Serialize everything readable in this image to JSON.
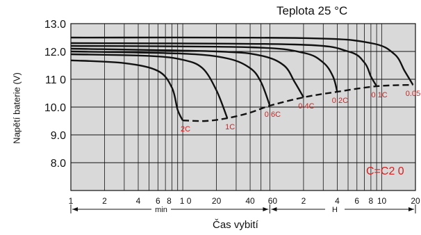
{
  "chart_data": {
    "type": "line",
    "title": "Teplota 25 °C",
    "xlabel": "Čas vybití",
    "ylabel": "Napětí baterie (V)",
    "ylim": [
      7.0,
      13.0
    ],
    "ytick_labels": [
      "13.0",
      "12.0",
      "11 0",
      "10.0",
      "9.0",
      "8.0"
    ],
    "xtick_labels": [
      "1",
      "2",
      "4",
      "6",
      "8",
      "1 0",
      "20",
      "40",
      "60",
      "2",
      "4",
      "6",
      "8",
      "10",
      "20"
    ],
    "unit_labels": {
      "min": "min",
      "hours": "H"
    },
    "note": "C=C2 0",
    "series": [
      {
        "name": "2C",
        "points": [
          [
            1,
            11.68
          ],
          [
            3,
            11.58
          ],
          [
            6,
            11.3
          ],
          [
            8,
            10.7
          ],
          [
            9,
            9.9
          ],
          [
            10,
            9.52
          ]
        ]
      },
      {
        "name": "1C",
        "points": [
          [
            1,
            11.9
          ],
          [
            5,
            11.84
          ],
          [
            10,
            11.7
          ],
          [
            15,
            11.4
          ],
          [
            20,
            10.6
          ],
          [
            25,
            9.6
          ]
        ]
      },
      {
        "name": "0.6C",
        "points": [
          [
            1,
            12.0
          ],
          [
            10,
            11.92
          ],
          [
            25,
            11.75
          ],
          [
            40,
            11.4
          ],
          [
            50,
            10.9
          ],
          [
            60,
            10.05
          ]
        ]
      },
      {
        "name": "0.4C",
        "points": [
          [
            1,
            12.1
          ],
          [
            20,
            12.0
          ],
          [
            50,
            11.85
          ],
          [
            80,
            11.5
          ],
          [
            100,
            10.9
          ],
          [
            120,
            10.35
          ]
        ]
      },
      {
        "name": "0.2C",
        "points": [
          [
            1,
            12.2
          ],
          [
            40,
            12.15
          ],
          [
            120,
            11.95
          ],
          [
            180,
            11.6
          ],
          [
            220,
            11.1
          ],
          [
            240,
            10.55
          ]
        ]
      },
      {
        "name": "0.1C",
        "points": [
          [
            1,
            12.3
          ],
          [
            100,
            12.25
          ],
          [
            300,
            12.0
          ],
          [
            420,
            11.6
          ],
          [
            480,
            11.1
          ],
          [
            540,
            10.75
          ]
        ]
      },
      {
        "name": "0.05C",
        "points": [
          [
            1,
            12.5
          ],
          [
            120,
            12.48
          ],
          [
            480,
            12.3
          ],
          [
            780,
            11.9
          ],
          [
            960,
            11.3
          ],
          [
            1140,
            10.8
          ]
        ]
      }
    ],
    "cutoff_line": {
      "style": "dashed",
      "points": [
        [
          10,
          9.52
        ],
        [
          16,
          9.5
        ],
        [
          25,
          9.6
        ],
        [
          40,
          9.8
        ],
        [
          60,
          10.05
        ],
        [
          120,
          10.35
        ],
        [
          240,
          10.55
        ],
        [
          540,
          10.75
        ],
        [
          1140,
          10.8
        ]
      ]
    }
  }
}
